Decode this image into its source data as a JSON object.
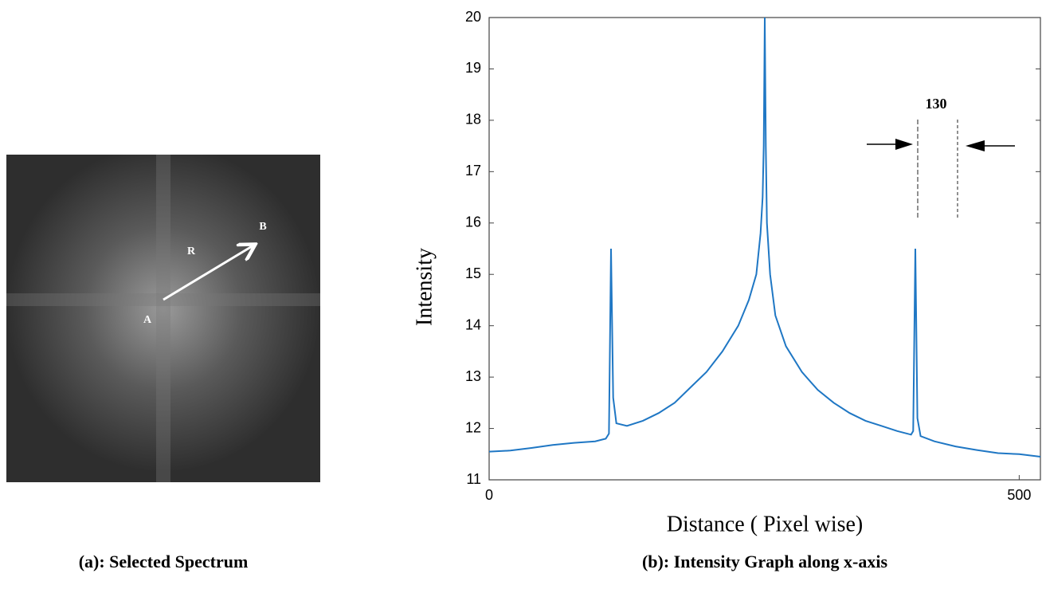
{
  "image_panel": {
    "caption": "(a): Selected Spectrum",
    "labels": [
      "A",
      "B",
      "R"
    ]
  },
  "chart_data": {
    "type": "line",
    "caption": "(b): Intensity Graph along x-axis",
    "xlabel": "Distance ( Pixel wise)",
    "ylabel": "Intensity",
    "annotation": "130",
    "xlim": [
      0,
      520
    ],
    "ylim": [
      11,
      20
    ],
    "xticks": [
      0,
      500
    ],
    "yticks": [
      11,
      12,
      13,
      14,
      15,
      16,
      17,
      18,
      19,
      20
    ],
    "series": [
      {
        "color": "#1f77c4",
        "x": [
          0,
          20,
          40,
          60,
          80,
          100,
          110,
          113,
          115,
          117,
          120,
          130,
          145,
          160,
          175,
          190,
          205,
          220,
          235,
          245,
          252,
          256,
          258,
          259,
          260,
          261,
          262,
          265,
          270,
          280,
          295,
          310,
          325,
          340,
          355,
          370,
          385,
          398,
          400,
          402,
          404,
          407,
          420,
          440,
          460,
          480,
          500,
          520
        ],
        "values": [
          11.55,
          11.57,
          11.62,
          11.68,
          11.72,
          11.75,
          11.8,
          11.9,
          15.5,
          12.6,
          12.1,
          12.05,
          12.15,
          12.3,
          12.5,
          12.8,
          13.1,
          13.5,
          14.0,
          14.5,
          15.0,
          15.8,
          16.5,
          17.5,
          20,
          17.5,
          16.0,
          15.0,
          14.2,
          13.6,
          13.1,
          12.75,
          12.5,
          12.3,
          12.15,
          12.05,
          11.95,
          11.88,
          11.95,
          15.5,
          12.2,
          11.85,
          11.75,
          11.65,
          11.58,
          11.52,
          11.5,
          11.45
        ]
      }
    ]
  }
}
